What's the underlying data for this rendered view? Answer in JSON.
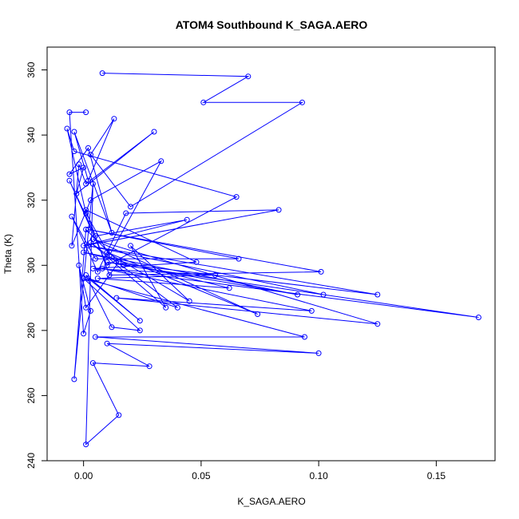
{
  "chart_data": {
    "type": "line",
    "title": "ATOM4 Southbound K_SAGA.AERO",
    "xlabel": "K_SAGA.AERO",
    "ylabel": "Theta (K)",
    "xlim": [
      -0.0155,
      0.175
    ],
    "ylim": [
      240,
      367
    ],
    "xticks": [
      0.0,
      0.05,
      0.1,
      0.15
    ],
    "xtick_labels": [
      "0.00",
      "0.05",
      "0.10",
      "0.15"
    ],
    "yticks": [
      240,
      260,
      280,
      300,
      320,
      340,
      360
    ],
    "ytick_labels": [
      "240",
      "260",
      "280",
      "300",
      "320",
      "340",
      "360"
    ],
    "grid": false,
    "color": "#0000ff",
    "series": [
      {
        "x": [
          0.008,
          0.07,
          0.051,
          0.093,
          0.02,
          0.003,
          0.013,
          0.002,
          -0.004,
          0.012,
          0.002,
          -0.006,
          0.0,
          -0.003,
          0.03,
          0.001,
          -0.002,
          -0.005,
          0.003,
          0.033,
          0.011,
          0.001,
          -0.007,
          -0.004,
          0.065,
          0.01,
          -0.006,
          0.005,
          0.044,
          0.0,
          0.083,
          0.018,
          0.006,
          -0.005,
          0.005,
          0.066,
          0.002,
          0.101,
          0.011,
          0.001,
          0.048,
          0.004,
          0.056,
          0.006,
          0.062,
          0.0,
          0.091,
          0.01,
          0.125,
          0.002,
          0.102,
          0.017,
          0.168,
          0.008,
          0.097,
          0.014,
          0.125,
          0.004,
          0.074,
          0.01,
          0.045,
          0.02,
          0.035,
          0.003,
          0.04,
          0.002,
          0.024,
          0.001,
          0.012,
          0.024,
          0.0,
          0.094,
          0.005,
          0.1,
          0.01,
          0.028,
          0.004,
          0.015,
          0.001,
          0.004,
          -0.004,
          0.001,
          0.015,
          0.001,
          -0.002,
          0.003,
          0.0,
          -0.006,
          0.001
        ],
        "y": [
          359,
          358,
          350,
          350,
          318,
          334,
          345,
          326,
          341,
          310,
          336,
          328,
          330,
          322,
          341,
          325,
          331,
          306,
          320,
          332,
          303,
          316,
          342,
          335,
          321,
          300,
          326,
          309,
          314,
          306,
          317,
          316,
          298,
          315,
          302,
          302,
          311,
          298,
          297,
          317,
          301,
          299,
          297,
          296,
          293,
          304,
          291,
          301,
          291,
          306,
          291,
          300,
          284,
          299,
          286,
          290,
          282,
          308,
          285,
          304,
          289,
          306,
          287,
          307,
          287,
          296,
          283,
          297,
          281,
          280,
          296,
          278,
          278,
          273,
          276,
          269,
          270,
          254,
          245,
          325,
          265,
          311,
          301,
          287,
          300,
          286,
          279,
          347,
          347
        ]
      }
    ]
  }
}
